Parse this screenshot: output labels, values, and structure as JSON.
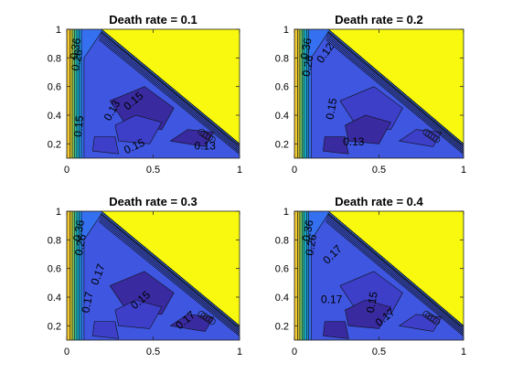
{
  "chart_data": [
    {
      "type": "contour",
      "title": "Death rate = 0.1",
      "xlim": [
        0,
        1
      ],
      "ylim": [
        0.1,
        1
      ],
      "x_ticks": [
        "0",
        "0.5",
        "1"
      ],
      "y_ticks": [
        "0.2",
        "0.4",
        "0.6",
        "0.8",
        "1"
      ],
      "contour_labels": [
        {
          "text": "0.13",
          "x": 0.28,
          "y": 0.42,
          "angle": 60
        },
        {
          "text": "0.15",
          "x": 0.4,
          "y": 0.48,
          "angle": 40
        },
        {
          "text": "0.15",
          "x": 0.09,
          "y": 0.32,
          "angle": 85
        },
        {
          "text": "0.15",
          "x": 0.4,
          "y": 0.16,
          "angle": 25
        },
        {
          "text": "0.13",
          "x": 0.8,
          "y": 0.16,
          "angle": 0
        },
        {
          "text": "0.26",
          "x": 0.08,
          "y": 0.78,
          "angle": 80
        },
        {
          "text": "0.36",
          "x": 0.07,
          "y": 0.86,
          "angle": 80
        }
      ],
      "grid": false
    },
    {
      "type": "contour",
      "title": "Death rate = 0.2",
      "xlim": [
        0,
        1
      ],
      "ylim": [
        0.1,
        1
      ],
      "x_ticks": [
        "0",
        "0.5",
        "1"
      ],
      "y_ticks": [
        "0.2",
        "0.4",
        "0.6",
        "0.8",
        "1"
      ],
      "contour_labels": [
        {
          "text": "0.12",
          "x": 0.2,
          "y": 0.82,
          "angle": 55
        },
        {
          "text": "0.15",
          "x": 0.24,
          "y": 0.44,
          "angle": 80
        },
        {
          "text": "0.13",
          "x": 0.35,
          "y": 0.19,
          "angle": 0
        },
        {
          "text": "0.26",
          "x": 0.1,
          "y": 0.74,
          "angle": 80
        },
        {
          "text": "0.36",
          "x": 0.09,
          "y": 0.86,
          "angle": 80
        }
      ],
      "grid": false
    },
    {
      "type": "contour",
      "title": "Death rate = 0.3",
      "xlim": [
        0,
        1
      ],
      "ylim": [
        0.1,
        1
      ],
      "x_ticks": [
        "0",
        "0.5",
        "1"
      ],
      "y_ticks": [
        "0.2",
        "0.4",
        "0.6",
        "0.8",
        "1"
      ],
      "contour_labels": [
        {
          "text": "0.17",
          "x": 0.2,
          "y": 0.55,
          "angle": 70
        },
        {
          "text": "0.17",
          "x": 0.14,
          "y": 0.36,
          "angle": 80
        },
        {
          "text": "0.15",
          "x": 0.44,
          "y": 0.36,
          "angle": 40
        },
        {
          "text": "0.17",
          "x": 0.7,
          "y": 0.22,
          "angle": 40
        },
        {
          "text": "0.26",
          "x": 0.1,
          "y": 0.76,
          "angle": 80
        },
        {
          "text": "0.36",
          "x": 0.09,
          "y": 0.86,
          "angle": 80
        }
      ],
      "grid": false
    },
    {
      "type": "contour",
      "title": "Death rate = 0.4",
      "xlim": [
        0,
        1
      ],
      "ylim": [
        0.1,
        1
      ],
      "x_ticks": [
        "0",
        "0.5",
        "1"
      ],
      "y_ticks": [
        "0.2",
        "0.4",
        "0.6",
        "0.8",
        "1"
      ],
      "contour_labels": [
        {
          "text": "0.17",
          "x": 0.24,
          "y": 0.68,
          "angle": 45
        },
        {
          "text": "0.17",
          "x": 0.22,
          "y": 0.36,
          "angle": 0
        },
        {
          "text": "0.15",
          "x": 0.48,
          "y": 0.36,
          "angle": 80
        },
        {
          "text": "0.17",
          "x": 0.55,
          "y": 0.24,
          "angle": 40
        },
        {
          "text": "0.26",
          "x": 0.12,
          "y": 0.76,
          "angle": 80
        },
        {
          "text": "0.36",
          "x": 0.1,
          "y": 0.86,
          "angle": 80
        }
      ],
      "grid": false
    }
  ]
}
